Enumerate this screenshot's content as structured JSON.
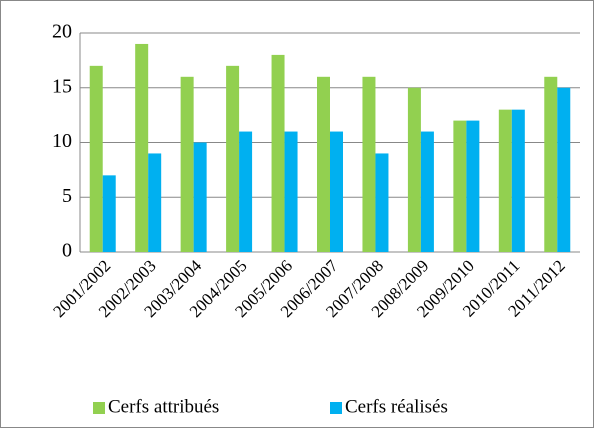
{
  "chart_data": {
    "type": "bar",
    "categories": [
      "2001/2002",
      "2002/2003",
      "2003/2004",
      "2004/2005",
      "2005/2006",
      "2006/2007",
      "2007/2008",
      "2008/2009",
      "2009/2010",
      "2010/2011",
      "2011/2012"
    ],
    "series": [
      {
        "name": "Cerfs attribués",
        "color": "#92d050",
        "values": [
          17,
          19,
          16,
          17,
          18,
          16,
          16,
          15,
          12,
          13,
          16
        ]
      },
      {
        "name": "Cerfs réalisés",
        "color": "#00b0f0",
        "values": [
          7,
          9,
          10,
          11,
          11,
          11,
          9,
          11,
          12,
          13,
          15
        ]
      }
    ],
    "ylim": [
      0,
      20
    ],
    "yticks": [
      0,
      5,
      10,
      15,
      20
    ],
    "grid": true,
    "legend": "bottom"
  }
}
